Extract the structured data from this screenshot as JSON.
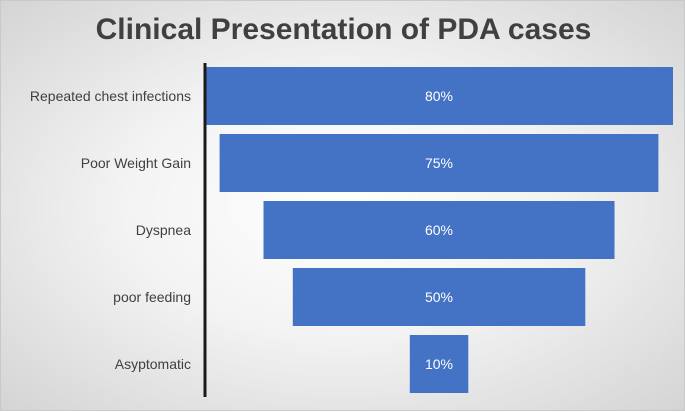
{
  "chart_data": {
    "type": "bar",
    "subtype": "funnel",
    "title": "Clinical Presentation of PDA cases",
    "categories": [
      "Repeated chest infections",
      "Poor Weight Gain",
      "Dyspnea",
      "poor feeding",
      "Asyptomatic"
    ],
    "values": [
      80,
      75,
      60,
      50,
      10
    ],
    "data_labels": [
      "80%",
      "75%",
      "60%",
      "50%",
      "10%"
    ],
    "unit": "%",
    "bar_color": "#4472C4",
    "xlabel": "",
    "ylabel": ""
  }
}
